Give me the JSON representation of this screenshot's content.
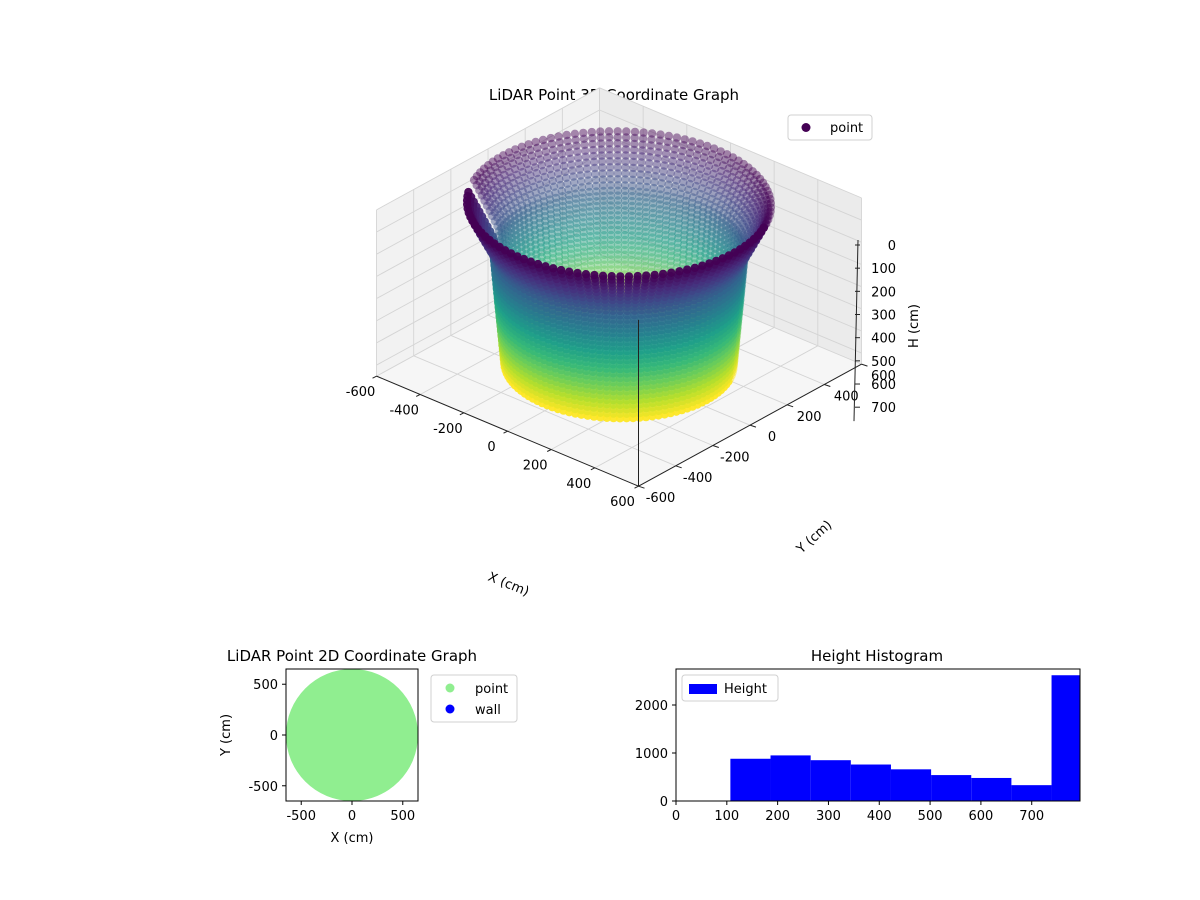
{
  "chart_data": [
    {
      "type": "scatter3d",
      "title": "LiDAR Point 3D Coordinate Graph",
      "xlabel": "X (cm)",
      "ylabel": "Y (cm)",
      "zlabel": "H (cm)",
      "xlim": [
        -600,
        600
      ],
      "ylim": [
        -600,
        600
      ],
      "zlim": [
        0,
        750
      ],
      "z_inverted": true,
      "x_ticks": [
        -600,
        -400,
        -200,
        0,
        200,
        400,
        600
      ],
      "y_ticks": [
        -600,
        -400,
        -200,
        0,
        200,
        400,
        600
      ],
      "z_ticks": [
        0,
        100,
        200,
        300,
        400,
        500,
        600,
        700
      ],
      "colormap": "viridis",
      "grid": true,
      "legend": {
        "entries": [
          "point"
        ],
        "placement": "upper-right"
      },
      "series": [
        {
          "name": "point",
          "shape": "cylindrical-wall",
          "radius_top": 530,
          "radius_waist": 440,
          "radius_bottom": 400,
          "h_top": 0,
          "h_waist": 200,
          "h_bottom": 720,
          "gap_angle_deg": 208
        }
      ]
    },
    {
      "type": "scatter",
      "title": "LiDAR Point 2D Coordinate Graph",
      "xlabel": "X (cm)",
      "ylabel": "Y (cm)",
      "xlim": [
        -650,
        650
      ],
      "ylim": [
        -650,
        650
      ],
      "x_ticks": [
        -500,
        0,
        500
      ],
      "y_ticks": [
        -500,
        0,
        500
      ],
      "legend": {
        "entries": [
          "point",
          "wall"
        ],
        "placement": "outside-right"
      },
      "series": [
        {
          "name": "point",
          "color": "#90ee90",
          "shape": "filled-disc",
          "center": [
            0,
            0
          ],
          "radius": 650
        },
        {
          "name": "wall",
          "color": "#0000ff",
          "points": []
        }
      ]
    },
    {
      "type": "bar",
      "title": "Height Histogram",
      "xlim": [
        0,
        795
      ],
      "ylim": [
        0,
        2750
      ],
      "x_ticks": [
        0,
        100,
        200,
        300,
        400,
        500,
        600,
        700
      ],
      "y_ticks": [
        0,
        1000,
        2000
      ],
      "legend": {
        "entries": [
          "Height"
        ],
        "placement": "upper-left"
      },
      "series": [
        {
          "name": "Height",
          "color": "#0000ff",
          "bins": [
            {
              "x0": 107,
              "x1": 186,
              "count": 880
            },
            {
              "x0": 186,
              "x1": 265,
              "count": 950
            },
            {
              "x0": 265,
              "x1": 344,
              "count": 850
            },
            {
              "x0": 344,
              "x1": 423,
              "count": 760
            },
            {
              "x0": 423,
              "x1": 502,
              "count": 660
            },
            {
              "x0": 502,
              "x1": 581,
              "count": 540
            },
            {
              "x0": 581,
              "x1": 660,
              "count": 480
            },
            {
              "x0": 660,
              "x1": 739,
              "count": 330
            },
            {
              "x0": 739,
              "x1": 795,
              "count": 2620
            }
          ]
        }
      ]
    }
  ]
}
